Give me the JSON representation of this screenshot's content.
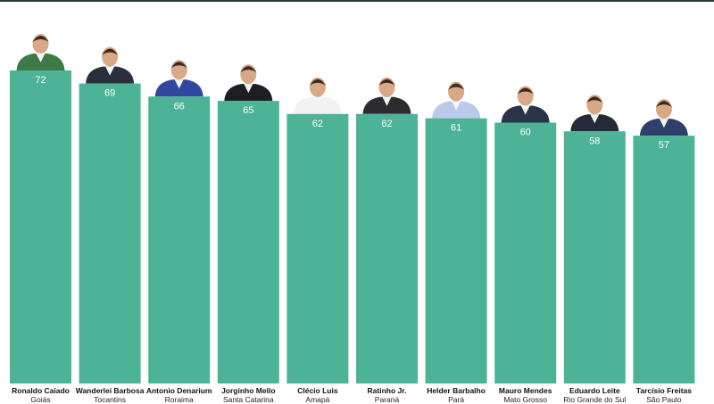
{
  "chart_data": {
    "type": "bar",
    "title": "",
    "xlabel": "",
    "ylabel": "",
    "ylim": [
      0,
      72
    ],
    "grid": false,
    "bar_color": "#4db396",
    "categories": [
      {
        "name": "Ronaldo Caiado",
        "state": "Goiás"
      },
      {
        "name": "Wanderlei Barbosa",
        "state": "Tocantins"
      },
      {
        "name": "Antonio Denarium",
        "state": "Roraima"
      },
      {
        "name": "Jorginho Mello",
        "state": "Santa Catarina"
      },
      {
        "name": "Clécio Luis",
        "state": "Amapá"
      },
      {
        "name": "Ratinho Jr.",
        "state": "Paraná"
      },
      {
        "name": "Helder Barbalho",
        "state": "Pará"
      },
      {
        "name": "Mauro Mendes",
        "state": "Mato Grosso"
      },
      {
        "name": "Eduardo Leite",
        "state": "Rio Grande do Sul"
      },
      {
        "name": "Tarcísio Freitas",
        "state": "São Paulo"
      }
    ],
    "values": [
      72,
      69,
      66,
      65,
      62,
      62,
      61,
      60,
      58,
      57
    ]
  }
}
